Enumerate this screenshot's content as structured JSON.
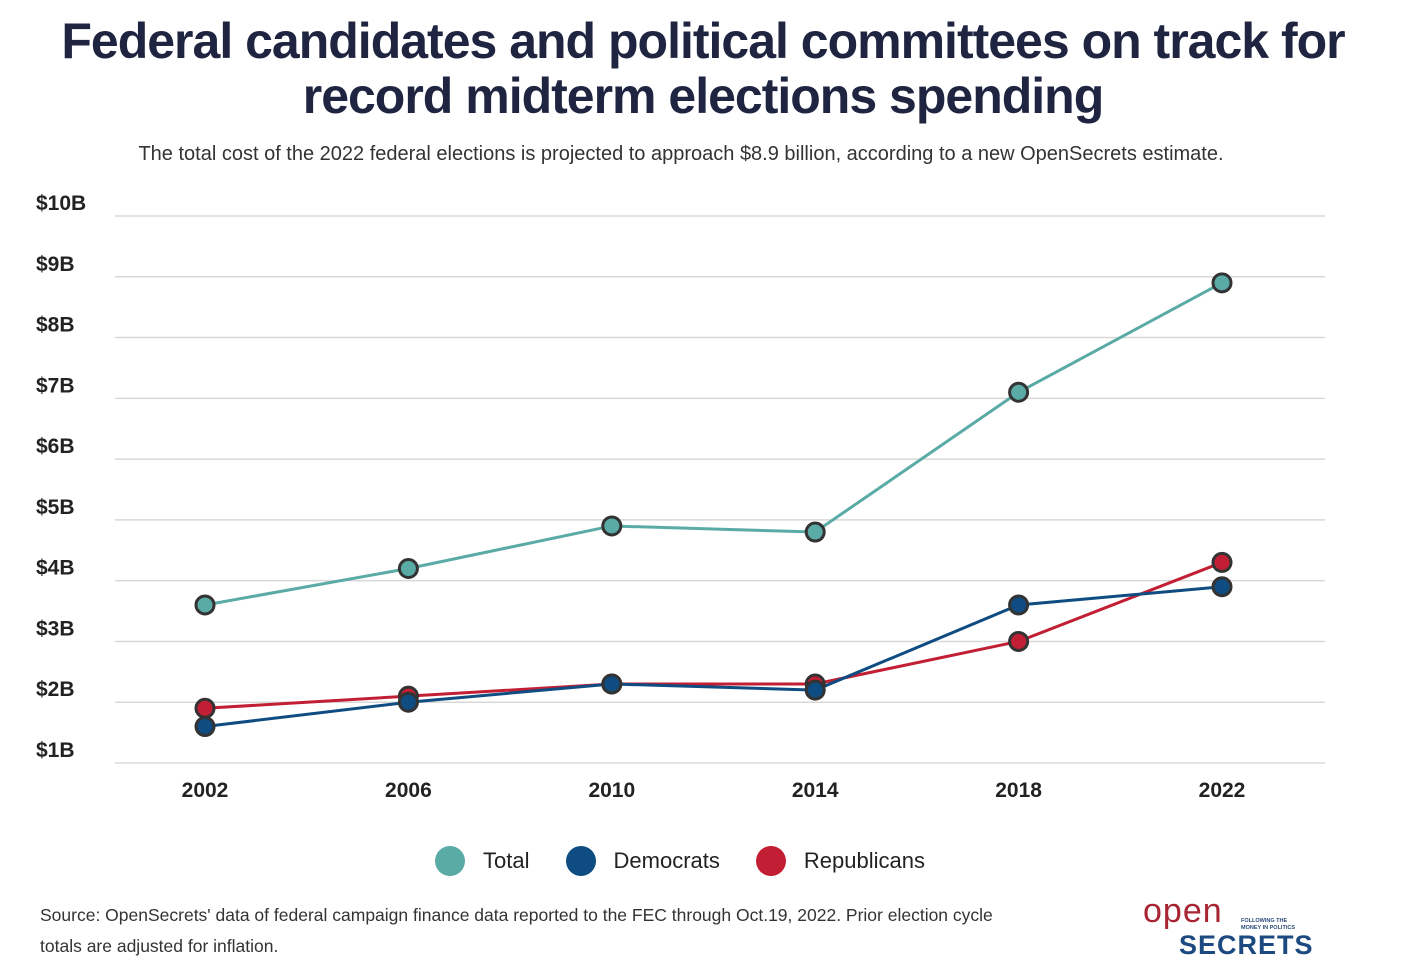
{
  "title": "Federal candidates and political committees on track for record midterm elections spending",
  "subtitle": "The total cost of the 2022 federal elections is projected to approach $8.9 billion, according to a new OpenSecrets estimate.",
  "source": "Source: OpenSecrets' data of federal campaign finance data reported to the FEC through Oct.19, 2022. Prior election cycle totals are adjusted for inflation.",
  "logo": {
    "open": "open",
    "secrets": "SECRETS",
    "tagline": "FOLLOWING THE MONEY IN POLITICS"
  },
  "chart_data": {
    "type": "line",
    "x": [
      "2002",
      "2006",
      "2010",
      "2014",
      "2018",
      "2022"
    ],
    "ylim": [
      1,
      10
    ],
    "yticks": [
      "$1B",
      "$2B",
      "$3B",
      "$4B",
      "$5B",
      "$6B",
      "$7B",
      "$8B",
      "$9B",
      "$10B"
    ],
    "grid": true,
    "legend_position": "bottom",
    "series": [
      {
        "name": "Total",
        "color": "#5aaba6",
        "values": [
          3.6,
          4.2,
          4.9,
          4.8,
          7.1,
          8.9
        ]
      },
      {
        "name": "Democrats",
        "color": "#0f4c81",
        "values": [
          1.6,
          2.0,
          2.3,
          2.2,
          3.6,
          3.9
        ]
      },
      {
        "name": "Republicans",
        "color": "#c21f34",
        "values": [
          1.9,
          2.1,
          2.3,
          2.3,
          3.0,
          4.3
        ]
      }
    ]
  }
}
